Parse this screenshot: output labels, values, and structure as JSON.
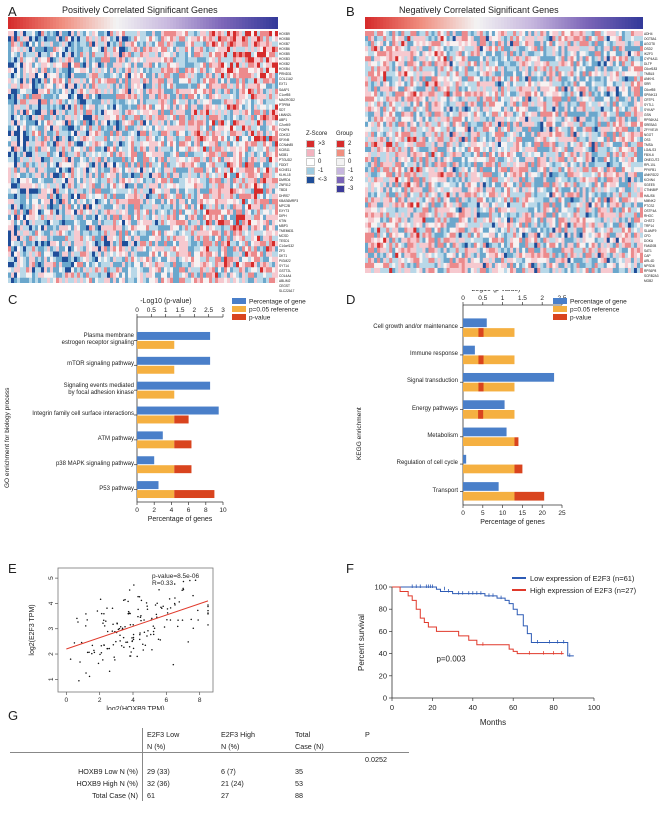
{
  "panels": {
    "a": {
      "letter": "A",
      "title": "Positively Correlated Significant Genes",
      "genes": [
        "HOXB9",
        "HOXB8",
        "HOXB7",
        "HOXB6",
        "HOXB5",
        "HOXB3",
        "HOXB2",
        "HOXB4",
        "PRND31",
        "COL11A2",
        "EXT1",
        "SAAP1",
        "C1orf55",
        "MACROD2",
        "PTPRM",
        "SDT",
        "LMAN2L",
        "ABP1",
        "C2orf49",
        "FOXP4",
        "CDKG2",
        "SFXN5",
        "CCNdh85",
        "KCIB11",
        "MGB1",
        "PTGUD2",
        "FDDIT",
        "KCNE11",
        "KLHL15",
        "DMRD4",
        "ZNF512",
        "TBD3",
        "DHRS7",
        "KBAS6MRP3",
        "MPC2B",
        "EXYT3",
        "DIPH",
        "KTIN",
        "MBP3",
        "TMEM631",
        "MCSD",
        "TESD1",
        "C14orf132",
        "ZF3",
        "DKT1",
        "PIGM22",
        "SYT14",
        "GSTT2L",
        "COL4A4",
        "ABLIM2",
        "CEGST",
        "SLC22A17"
      ]
    },
    "b": {
      "letter": "B",
      "title": "Negatively Correlated Significant Genes",
      "genes": [
        "ADH4",
        "OGT5A1",
        "AGOT8",
        "OSD2",
        "IKZF3",
        "CYP4A11",
        "DLTP",
        "C6orf183",
        "TMBL5",
        "ANKH1",
        "SRR",
        "C6orf55",
        "SPINK13",
        "CRTP1",
        "SYTL1",
        "SYKAP",
        "GSN",
        "RPS6KA1",
        "SREBA3",
        "ZFYVE19",
        "NGOT",
        "OS3",
        "TMSA",
        "LGALS3",
        "FBXL6",
        "ONECUT2",
        "RPL10L",
        "PFKFB1",
        "ANKRD22",
        "KCNN4",
        "SGEE5",
        "CTNNBIP",
        "HAUS6",
        "MMNK2",
        "PTCS2",
        "OSTF4A",
        "RHOC",
        "CHST2",
        "TRP14",
        "SLAMF9",
        "CFD",
        "DOKA",
        "FAM20B",
        "SAT1",
        "CAP",
        "ARL4D",
        "NPSD6",
        "RPS6P8",
        "SCRB2A3",
        "MGB2"
      ]
    },
    "zlegend": {
      "title": "Z-Score",
      "items": [
        ">3",
        "1",
        "0",
        "-1",
        "<-3"
      ],
      "colors": [
        "#d62c2c",
        "#f2b3bf",
        "#ffffff",
        "#9fcbe0",
        "#1f4e99"
      ]
    },
    "glegend": {
      "title": "Group",
      "items": [
        "2",
        "1",
        "0",
        "-1",
        "-2",
        "-3"
      ],
      "colors": [
        "#d62c2c",
        "#f08f80",
        "#f3f3f3",
        "#c7b7de",
        "#7c66b8",
        "#3c3b9a"
      ]
    },
    "c": {
      "letter": "C",
      "ylabel": "GO enrichment for biology process",
      "xlabel_top": "-Log10 (p-value)",
      "xlabel_bottom": "Percentage of genes",
      "legend": [
        "Percentage of gene",
        "p=0.05 reference",
        "p-value"
      ]
    },
    "d": {
      "letter": "D",
      "ylabel": "KEGG enrichment",
      "xlabel_top": "-Log10 (p-value)",
      "xlabel_bottom": "Percentage of genes",
      "legend": [
        "Percentage of gene",
        "p=0.05 reference",
        "p-value"
      ]
    },
    "e": {
      "letter": "E",
      "annotation_p": "p-value=8.5e-06",
      "annotation_r": "R=0.33"
    },
    "f": {
      "letter": "F",
      "legend_low": "Low expression of E2F3 (n=61)",
      "legend_high": "High expression of E2F3 (n=27)",
      "pval": "p=0.003"
    },
    "g": {
      "letter": "G",
      "header1": [
        "",
        "E2F3 Low",
        "E2F3 High",
        "Total",
        "P"
      ],
      "header2": [
        "",
        "N (%)",
        "N (%)",
        "Case (N)",
        ""
      ],
      "rows": [
        [
          "",
          "",
          "",
          "",
          "0.0252"
        ],
        [
          "HOXB9  Low N (%)",
          "29 (33)",
          "6 (7)",
          "35",
          ""
        ],
        [
          "HOXB9  High N (%)",
          "32 (36)",
          "21 (24)",
          "53",
          ""
        ],
        [
          "Total Case (N)",
          "61",
          "27",
          "88",
          ""
        ]
      ]
    }
  },
  "chart_data": [
    {
      "type": "bar",
      "id": "C",
      "title": "",
      "categories": [
        "Plasma membrane\nestrogen receptor signaling",
        "mTOR signaling pathway",
        "Signaling events mediated\nby focal adhesion kinase",
        "Integrin family cell surface interactions",
        "ATM pathway",
        "p38 MAPK signaling pathway",
        "P53 pathway"
      ],
      "series": [
        {
          "name": "Percentage of gene",
          "axis": "percentage",
          "values": [
            8.5,
            8.5,
            8.5,
            9.5,
            3.0,
            2.0,
            2.5
          ]
        },
        {
          "name": "p=0.05 reference",
          "axis": "log10",
          "values": [
            1.3,
            1.3,
            1.3,
            1.3,
            1.3,
            1.3,
            1.3
          ]
        },
        {
          "name": "p-value",
          "axis": "log10",
          "values": [
            0.0,
            0.0,
            0.0,
            1.8,
            1.9,
            1.9,
            2.7
          ]
        }
      ],
      "xlabel": "Percentage of genes",
      "x2label": "-Log10 (p-value)",
      "ylabel": "GO enrichment for biology process",
      "xlim": [
        0,
        10
      ],
      "x2lim": [
        0,
        3
      ],
      "xticks": [
        "0",
        "2",
        "4",
        "6",
        "8",
        "10"
      ],
      "x2ticks": [
        "0",
        "0.5",
        "1",
        "1.5",
        "2",
        "2.5",
        "3"
      ]
    },
    {
      "type": "bar",
      "id": "D",
      "title": "",
      "categories": [
        "Cell growth and/or maintenance",
        "Immune response",
        "Signal transduction",
        "Energy pathways",
        "Metabolism",
        "Regulation of cell cycle",
        "Transport"
      ],
      "series": [
        {
          "name": "Percentage of gene",
          "axis": "percentage",
          "values": [
            6,
            3,
            23,
            10.5,
            11,
            0.8,
            9
          ]
        },
        {
          "name": "p=0.05 reference",
          "axis": "log10",
          "values": [
            1.3,
            1.3,
            1.3,
            1.3,
            1.3,
            1.3,
            1.3
          ]
        },
        {
          "name": "p-value",
          "axis": "log10",
          "values": [
            1.3,
            1.3,
            1.3,
            1.27,
            1.4,
            1.5,
            2.05
          ]
        }
      ],
      "xlabel": "Percentage of genes",
      "x2label": "-Log10 (p-value)",
      "ylabel": "KEGG enrichment",
      "xlim": [
        0,
        25
      ],
      "x2lim": [
        0,
        2.5
      ],
      "xticks": [
        "0",
        "5",
        "10",
        "15",
        "20",
        "25"
      ],
      "x2ticks": [
        "0",
        "0.5",
        "1",
        "1.5",
        "2",
        "2.5"
      ]
    },
    {
      "type": "scatter",
      "id": "E",
      "xlabel": "log2(HOXB9 TPM)",
      "ylabel": "log2(E2F3 TPM)",
      "xlim": [
        -0.5,
        8.8
      ],
      "ylim": [
        0.5,
        5.4
      ],
      "xticks": [
        "0",
        "2",
        "4",
        "6",
        "8"
      ],
      "yticks": [
        "1",
        "2",
        "3",
        "4",
        "5"
      ],
      "fit": {
        "x": [
          0,
          8.5
        ],
        "y": [
          2.2,
          4.1
        ]
      },
      "annotation": [
        "p-value=8.5e-06",
        "R=0.33"
      ]
    },
    {
      "type": "line",
      "id": "F",
      "xlabel": "Months",
      "ylabel": "Percent survival",
      "xlim": [
        0,
        100
      ],
      "ylim": [
        0,
        100
      ],
      "xticks": [
        "0",
        "20",
        "40",
        "60",
        "80",
        "100"
      ],
      "yticks": [
        "0",
        "20",
        "40",
        "60",
        "80",
        "100"
      ],
      "series": [
        {
          "name": "Low expression of E2F3 (n=61)",
          "color": "#2d5bb5",
          "x": [
            0,
            22,
            22,
            24,
            24,
            30,
            30,
            46,
            46,
            52,
            52,
            56,
            56,
            58,
            58,
            60,
            60,
            62,
            62,
            65,
            65,
            67,
            67,
            69,
            69,
            87,
            87,
            90
          ],
          "y": [
            100,
            100,
            98,
            98,
            96,
            96,
            94,
            94,
            92,
            92,
            90,
            90,
            88,
            88,
            85,
            85,
            80,
            80,
            75,
            75,
            65,
            65,
            58,
            58,
            50,
            50,
            38,
            38
          ],
          "censor_x": [
            10,
            12,
            14,
            17,
            18,
            19,
            20,
            26,
            28,
            33,
            35,
            38,
            40,
            42,
            44,
            48,
            50,
            54,
            72,
            78,
            82,
            85,
            88
          ],
          "censor_y": [
            100,
            100,
            100,
            100,
            100,
            100,
            100,
            98,
            96,
            94,
            94,
            94,
            94,
            94,
            94,
            92,
            92,
            90,
            50,
            50,
            50,
            50,
            38
          ]
        },
        {
          "name": "High expression of E2F3 (n=27)",
          "color": "#e0392b",
          "x": [
            0,
            4,
            4,
            8,
            8,
            10,
            10,
            12,
            12,
            14,
            14,
            16,
            16,
            18,
            18,
            22,
            22,
            33,
            33,
            38,
            38,
            42,
            42,
            58,
            58,
            60,
            60,
            62,
            62,
            64,
            64,
            85
          ],
          "y": [
            100,
            100,
            96,
            96,
            92,
            92,
            88,
            88,
            80,
            80,
            72,
            72,
            68,
            68,
            64,
            64,
            60,
            60,
            56,
            56,
            52,
            52,
            48,
            48,
            44,
            44,
            42,
            42,
            40,
            40,
            40,
            40
          ],
          "censor_x": [
            45,
            68,
            75,
            80,
            84
          ],
          "censor_y": [
            48,
            40,
            40,
            40,
            40
          ]
        }
      ],
      "annotation": "p=0.003"
    }
  ]
}
